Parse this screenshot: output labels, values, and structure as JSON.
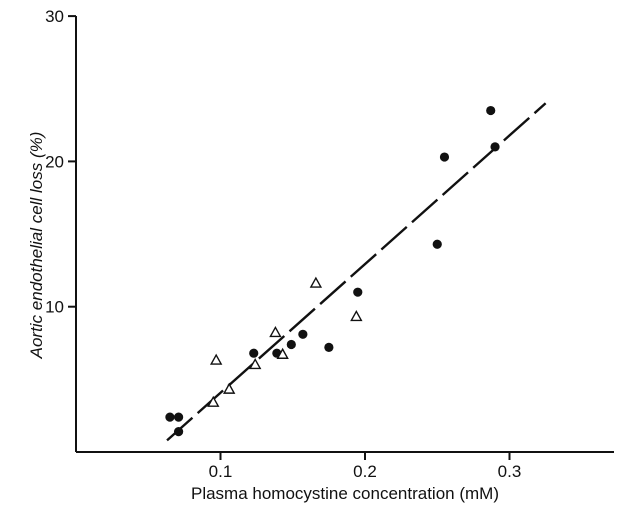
{
  "chart_data": {
    "type": "scatter",
    "xlabel": "Plasma homocystine concentration (mM)",
    "ylabel": "Aortic endothelial cell loss  (%)",
    "xlim": [
      0,
      0.38
    ],
    "ylim": [
      0,
      30
    ],
    "x_ticks": [
      0.1,
      0.2,
      0.3
    ],
    "x_tick_labels": [
      "0.1",
      "0.2",
      "0.3"
    ],
    "y_ticks": [
      10,
      20,
      30
    ],
    "y_tick_labels": [
      "10",
      "20",
      "30"
    ],
    "grid": false,
    "legend": "none",
    "series": [
      {
        "marker": "filled-circle",
        "points": [
          {
            "x": 0.065,
            "y": 2.4
          },
          {
            "x": 0.071,
            "y": 2.4
          },
          {
            "x": 0.071,
            "y": 1.4
          },
          {
            "x": 0.123,
            "y": 6.8
          },
          {
            "x": 0.139,
            "y": 6.8
          },
          {
            "x": 0.149,
            "y": 7.4
          },
          {
            "x": 0.157,
            "y": 8.1
          },
          {
            "x": 0.175,
            "y": 7.2
          },
          {
            "x": 0.195,
            "y": 11.0
          },
          {
            "x": 0.25,
            "y": 14.3
          },
          {
            "x": 0.255,
            "y": 20.3
          },
          {
            "x": 0.287,
            "y": 23.5
          },
          {
            "x": 0.29,
            "y": 21.0
          }
        ]
      },
      {
        "marker": "open-triangle",
        "points": [
          {
            "x": 0.097,
            "y": 6.3
          },
          {
            "x": 0.106,
            "y": 4.3
          },
          {
            "x": 0.095,
            "y": 3.4
          },
          {
            "x": 0.124,
            "y": 6.0
          },
          {
            "x": 0.138,
            "y": 8.2
          },
          {
            "x": 0.143,
            "y": 6.7
          },
          {
            "x": 0.166,
            "y": 11.6
          },
          {
            "x": 0.194,
            "y": 9.3
          }
        ]
      }
    ],
    "regression_line": {
      "x": [
        0.063,
        0.325
      ],
      "y": [
        0.8,
        24.0
      ],
      "style": "long-dash"
    },
    "colors": {
      "ink": "#111111",
      "background": "#ffffff"
    }
  }
}
